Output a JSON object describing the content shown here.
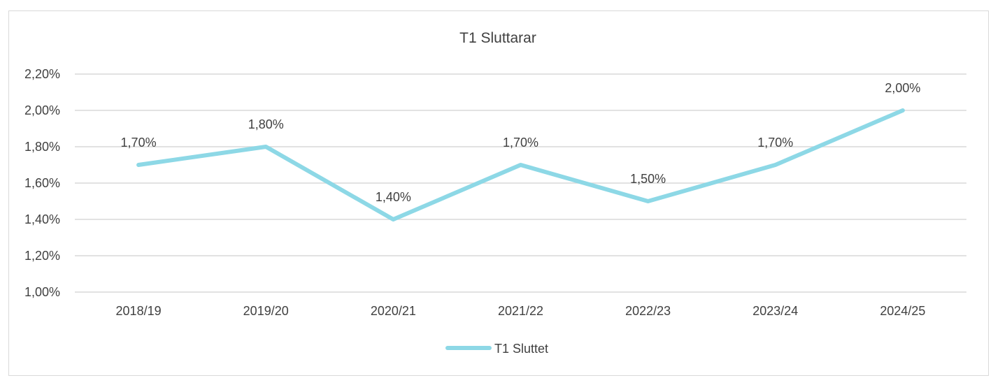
{
  "chart_data": {
    "type": "line",
    "title": "T1 Sluttarar",
    "categories": [
      "2018/19",
      "2019/20",
      "2020/21",
      "2021/22",
      "2022/23",
      "2023/24",
      "2024/25"
    ],
    "series": [
      {
        "name": "T1 Sluttet",
        "values": [
          1.7,
          1.8,
          1.4,
          1.7,
          1.5,
          1.7,
          2.0
        ],
        "labels": [
          "1,70%",
          "1,80%",
          "1,40%",
          "1,70%",
          "1,50%",
          "1,70%",
          "2,00%"
        ],
        "color": "#8dd8e6"
      }
    ],
    "ylim": [
      1.0,
      2.2
    ],
    "yticks": [
      {
        "value": 2.2,
        "label": "2,20%"
      },
      {
        "value": 2.0,
        "label": "2,00%"
      },
      {
        "value": 1.8,
        "label": "1,80%"
      },
      {
        "value": 1.6,
        "label": "1,60%"
      },
      {
        "value": 1.4,
        "label": "1,40%"
      },
      {
        "value": 1.2,
        "label": "1,20%"
      },
      {
        "value": 1.0,
        "label": "1,00%"
      }
    ],
    "grid": true,
    "gridColor": "#d9d9d9",
    "legend": "bottom"
  }
}
